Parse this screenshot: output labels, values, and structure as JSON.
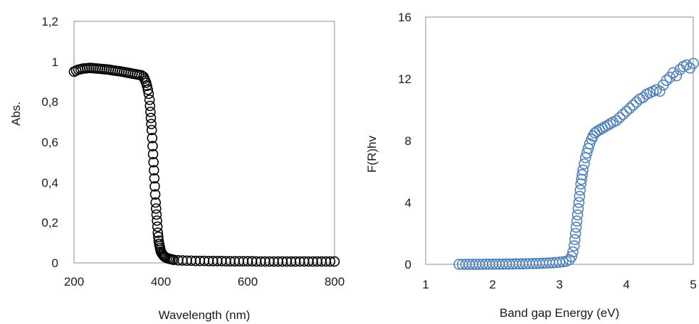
{
  "chart_data": [
    {
      "type": "scatter",
      "xlabel": "Wavelength (nm)",
      "ylabel": "Abs.",
      "xlim": [
        200,
        800
      ],
      "ylim": [
        0,
        1.2
      ],
      "x_ticks": [
        "200",
        "400",
        "600",
        "800"
      ],
      "y_ticks": [
        "0",
        "0,2",
        "0,4",
        "0,6",
        "0,8",
        "1",
        "1,2"
      ],
      "grid": false,
      "marker_color": "#000000",
      "series": [
        {
          "x": [
            200,
            205,
            210,
            215,
            220,
            225,
            230,
            235,
            240,
            245,
            250,
            255,
            260,
            265,
            270,
            275,
            280,
            285,
            290,
            295,
            300,
            305,
            310,
            315,
            320,
            325,
            330,
            335,
            340,
            345,
            350,
            355,
            360,
            362,
            364,
            366,
            368,
            370,
            372,
            374,
            375,
            376,
            377,
            378,
            379,
            380,
            381,
            382,
            383,
            384,
            385,
            386,
            387,
            388,
            389,
            390,
            391,
            392,
            393,
            394,
            395,
            396,
            397,
            398,
            399,
            400,
            402,
            404,
            406,
            408,
            410,
            414,
            418,
            422,
            426,
            430,
            440,
            450,
            460,
            470,
            480,
            490,
            500,
            510,
            520,
            530,
            540,
            550,
            560,
            570,
            580,
            590,
            600,
            610,
            620,
            630,
            640,
            650,
            660,
            670,
            680,
            690,
            700,
            710,
            720,
            730,
            740,
            750,
            760,
            770,
            780,
            790,
            800
          ],
          "y": [
            0.95,
            0.955,
            0.96,
            0.962,
            0.965,
            0.966,
            0.967,
            0.968,
            0.968,
            0.967,
            0.966,
            0.965,
            0.964,
            0.963,
            0.962,
            0.961,
            0.96,
            0.958,
            0.956,
            0.955,
            0.953,
            0.952,
            0.95,
            0.948,
            0.946,
            0.944,
            0.942,
            0.94,
            0.938,
            0.936,
            0.934,
            0.932,
            0.925,
            0.915,
            0.905,
            0.895,
            0.88,
            0.86,
            0.84,
            0.81,
            0.78,
            0.75,
            0.72,
            0.69,
            0.66,
            0.62,
            0.58,
            0.54,
            0.5,
            0.46,
            0.42,
            0.38,
            0.34,
            0.3,
            0.27,
            0.24,
            0.21,
            0.18,
            0.15,
            0.13,
            0.11,
            0.095,
            0.085,
            0.075,
            0.065,
            0.056,
            0.048,
            0.042,
            0.036,
            0.032,
            0.028,
            0.024,
            0.021,
            0.019,
            0.017,
            0.015,
            0.013,
            0.012,
            0.011,
            0.011,
            0.01,
            0.01,
            0.01,
            0.009,
            0.009,
            0.009,
            0.009,
            0.008,
            0.008,
            0.008,
            0.008,
            0.008,
            0.008,
            0.008,
            0.007,
            0.007,
            0.007,
            0.007,
            0.007,
            0.007,
            0.007,
            0.007,
            0.007,
            0.007,
            0.007,
            0.007,
            0.007,
            0.007,
            0.007,
            0.007,
            0.007,
            0.007,
            0.007
          ]
        }
      ]
    },
    {
      "type": "scatter",
      "xlabel": "Band gap Energy (eV)",
      "ylabel": "F(R)hv",
      "xlim": [
        1,
        5
      ],
      "ylim": [
        0,
        16
      ],
      "x_ticks": [
        "1",
        "2",
        "3",
        "4",
        "5"
      ],
      "y_ticks": [
        "0",
        "4",
        "8",
        "12",
        "16"
      ],
      "grid": false,
      "marker_color": "#4f81bd",
      "series": [
        {
          "x": [
            1.5,
            1.55,
            1.6,
            1.65,
            1.7,
            1.75,
            1.8,
            1.85,
            1.9,
            1.95,
            2.0,
            2.05,
            2.1,
            2.15,
            2.2,
            2.25,
            2.3,
            2.35,
            2.4,
            2.45,
            2.5,
            2.55,
            2.6,
            2.65,
            2.7,
            2.75,
            2.8,
            2.85,
            2.9,
            2.95,
            3.0,
            3.05,
            3.1,
            3.15,
            3.18,
            3.2,
            3.22,
            3.23,
            3.24,
            3.25,
            3.26,
            3.27,
            3.28,
            3.29,
            3.3,
            3.31,
            3.32,
            3.33,
            3.34,
            3.35,
            3.37,
            3.39,
            3.41,
            3.43,
            3.45,
            3.48,
            3.5,
            3.53,
            3.56,
            3.6,
            3.64,
            3.68,
            3.72,
            3.76,
            3.8,
            3.85,
            3.9,
            3.95,
            4.0,
            4.05,
            4.1,
            4.15,
            4.2,
            4.25,
            4.3,
            4.35,
            4.4,
            4.45,
            4.5,
            4.55,
            4.6,
            4.65,
            4.7,
            4.75,
            4.8,
            4.85,
            4.9,
            4.95,
            5.0
          ],
          "y": [
            0.0,
            0.0,
            0.0,
            0.0,
            0.0,
            0.0,
            0.0,
            0.0,
            0.01,
            0.01,
            0.01,
            0.01,
            0.01,
            0.01,
            0.02,
            0.02,
            0.02,
            0.03,
            0.03,
            0.03,
            0.04,
            0.04,
            0.05,
            0.05,
            0.06,
            0.07,
            0.08,
            0.09,
            0.1,
            0.12,
            0.14,
            0.16,
            0.2,
            0.3,
            0.5,
            0.8,
            1.2,
            1.6,
            2.0,
            2.4,
            2.8,
            3.2,
            3.6,
            4.0,
            4.4,
            4.8,
            5.2,
            5.5,
            5.8,
            6.1,
            6.5,
            6.9,
            7.2,
            7.5,
            7.8,
            8.1,
            8.3,
            8.5,
            8.6,
            8.7,
            8.8,
            8.9,
            9.0,
            9.1,
            9.2,
            9.3,
            9.5,
            9.7,
            9.9,
            10.1,
            10.3,
            10.5,
            10.7,
            10.8,
            11.0,
            11.1,
            11.2,
            11.3,
            11.2,
            11.6,
            11.9,
            12.1,
            12.4,
            12.2,
            12.6,
            12.8,
            12.9,
            12.7,
            13.0
          ]
        }
      ]
    }
  ]
}
